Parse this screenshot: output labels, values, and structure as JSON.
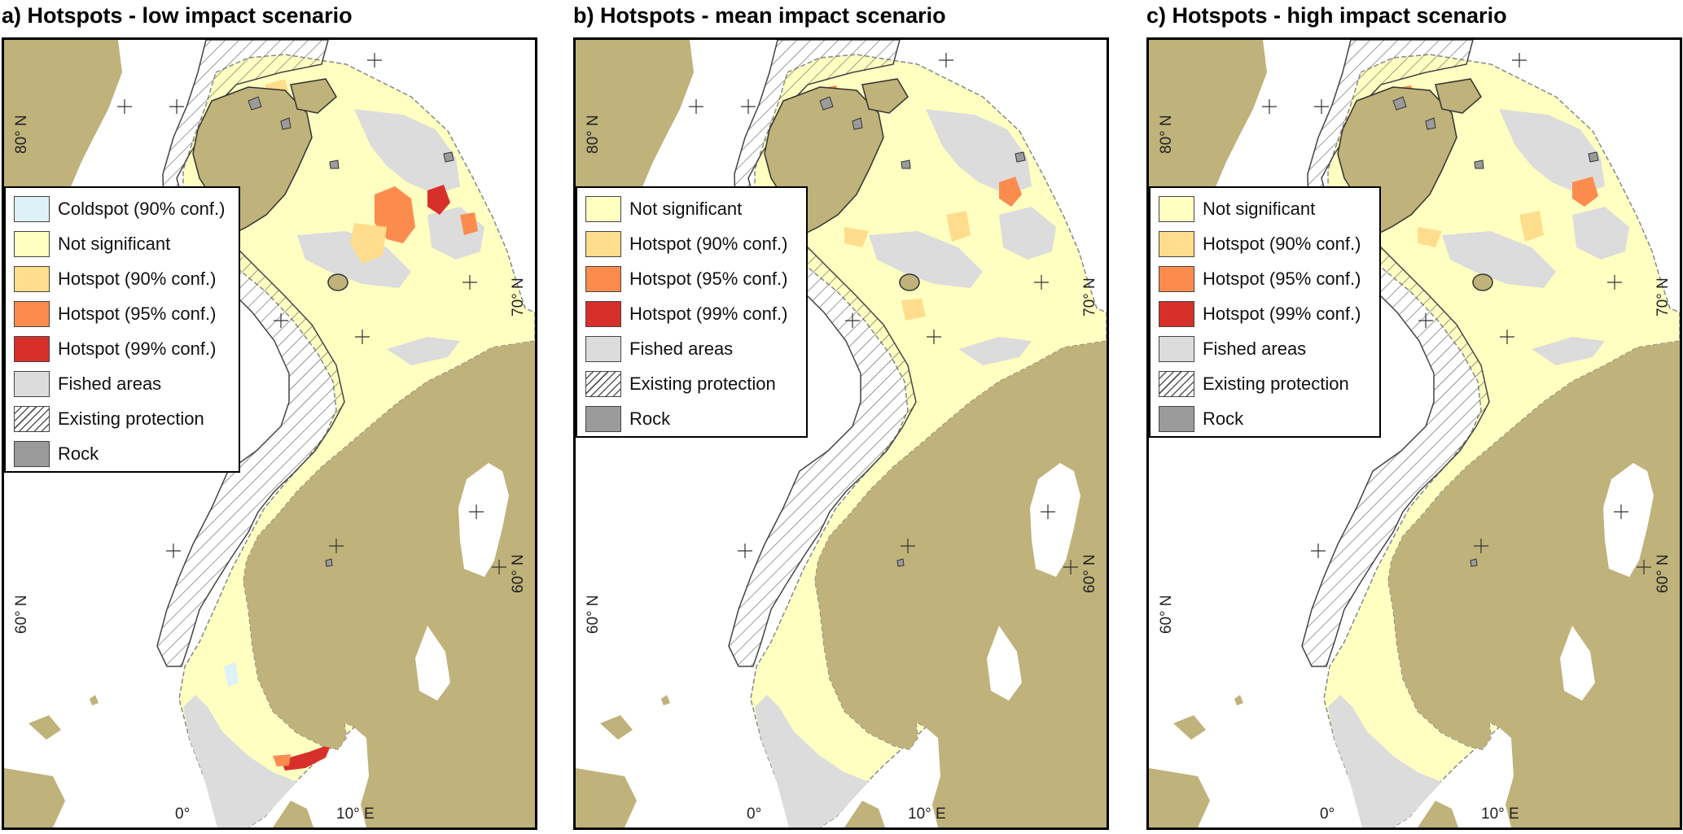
{
  "colors": {
    "land": "#bfb27a",
    "sea": "#ffffff",
    "not_significant": "#ffffc2",
    "hotspot90": "#ffdd8c",
    "hotspot95": "#fc8c4e",
    "hotspot99": "#d7302a",
    "coldspot90": "#ddf2f7",
    "fished": "#dcdcdc",
    "rock": "#9b9b9b",
    "outline": "#4a4a4a"
  },
  "graticule_labels": {
    "lat80": "80° N",
    "lat70": "70° N",
    "lat60_right": "60° N",
    "lat60_left": "60° N",
    "lon0": "0°",
    "lon10": "10° E"
  },
  "panels": [
    {
      "title": "a) Hotspots - low impact scenario",
      "legend": [
        {
          "label": "Coldspot (90% conf.)",
          "color": "#ddf2f7",
          "pattern": "solid"
        },
        {
          "label": "Not significant",
          "color": "#ffffc2",
          "pattern": "solid"
        },
        {
          "label": "Hotspot (90% conf.)",
          "color": "#ffdd8c",
          "pattern": "solid"
        },
        {
          "label": "Hotspot (95% conf.)",
          "color": "#fc8c4e",
          "pattern": "solid"
        },
        {
          "label": "Hotspot (99% conf.)",
          "color": "#d7302a",
          "pattern": "solid"
        },
        {
          "label": "Fished areas",
          "color": "#dcdcdc",
          "pattern": "solid"
        },
        {
          "label": "Existing protection",
          "color": "#ffffff",
          "pattern": "hatch"
        },
        {
          "label": "Rock",
          "color": "#9b9b9b",
          "pattern": "solid"
        }
      ]
    },
    {
      "title": "b) Hotspots - mean impact scenario",
      "legend": [
        {
          "label": "Not significant",
          "color": "#ffffc2",
          "pattern": "solid"
        },
        {
          "label": "Hotspot (90% conf.)",
          "color": "#ffdd8c",
          "pattern": "solid"
        },
        {
          "label": "Hotspot (95% conf.)",
          "color": "#fc8c4e",
          "pattern": "solid"
        },
        {
          "label": "Hotspot (99% conf.)",
          "color": "#d7302a",
          "pattern": "solid"
        },
        {
          "label": "Fished areas",
          "color": "#dcdcdc",
          "pattern": "solid"
        },
        {
          "label": "Existing protection",
          "color": "#ffffff",
          "pattern": "hatch"
        },
        {
          "label": "Rock",
          "color": "#9b9b9b",
          "pattern": "solid"
        }
      ]
    },
    {
      "title": "c) Hotspots - high impact scenario",
      "legend": [
        {
          "label": "Not significant",
          "color": "#ffffc2",
          "pattern": "solid"
        },
        {
          "label": "Hotspot (90% conf.)",
          "color": "#ffdd8c",
          "pattern": "solid"
        },
        {
          "label": "Hotspot (95% conf.)",
          "color": "#fc8c4e",
          "pattern": "solid"
        },
        {
          "label": "Hotspot (99% conf.)",
          "color": "#d7302a",
          "pattern": "solid"
        },
        {
          "label": "Fished areas",
          "color": "#dcdcdc",
          "pattern": "solid"
        },
        {
          "label": "Existing protection",
          "color": "#ffffff",
          "pattern": "hatch"
        },
        {
          "label": "Rock",
          "color": "#9b9b9b",
          "pattern": "solid"
        }
      ]
    }
  ]
}
